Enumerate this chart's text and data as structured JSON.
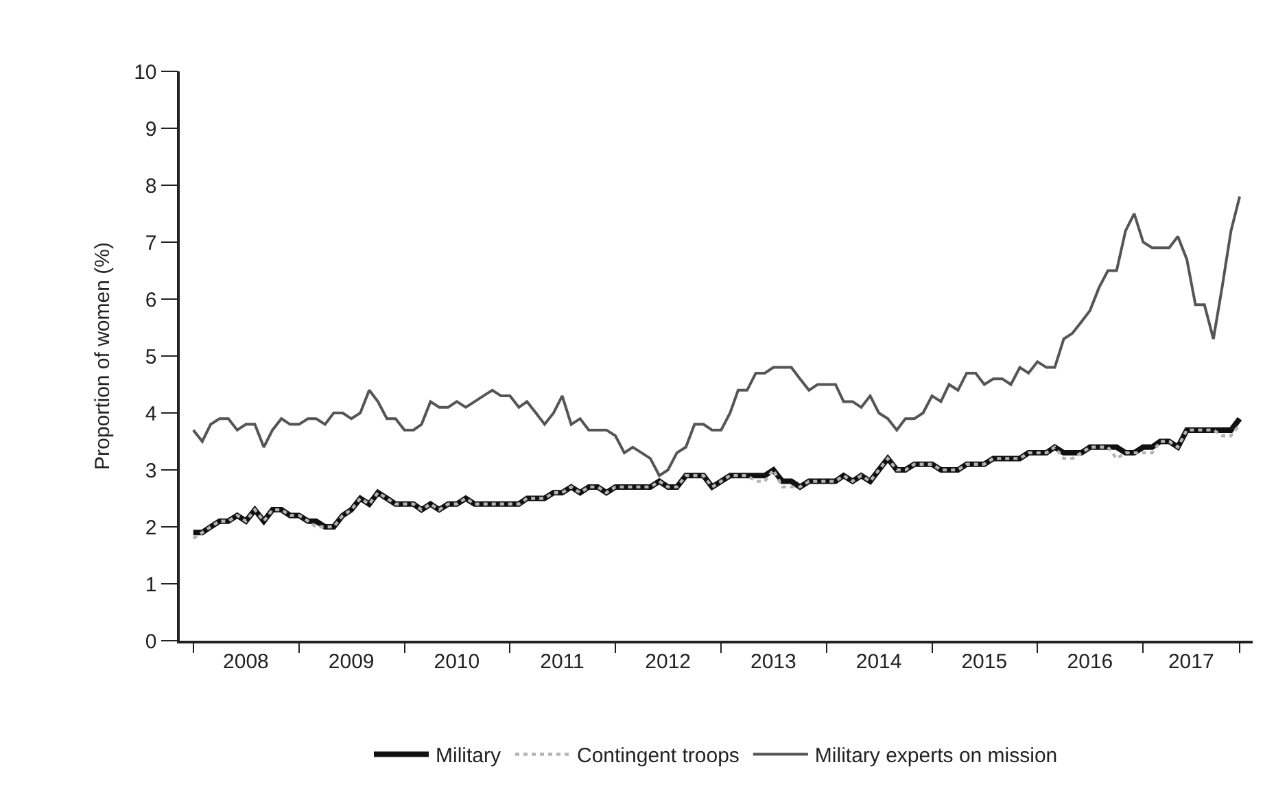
{
  "chart_data": {
    "type": "line",
    "ylabel": "Proportion of women (%)",
    "x": [
      "2008-01",
      "2008-02",
      "2008-03",
      "2008-04",
      "2008-05",
      "2008-06",
      "2008-07",
      "2008-08",
      "2008-09",
      "2008-10",
      "2008-11",
      "2008-12",
      "2009-01",
      "2009-02",
      "2009-03",
      "2009-04",
      "2009-05",
      "2009-06",
      "2009-07",
      "2009-08",
      "2009-09",
      "2009-10",
      "2009-11",
      "2009-12",
      "2010-01",
      "2010-02",
      "2010-03",
      "2010-04",
      "2010-05",
      "2010-06",
      "2010-07",
      "2010-08",
      "2010-09",
      "2010-10",
      "2010-11",
      "2010-12",
      "2011-01",
      "2011-02",
      "2011-03",
      "2011-04",
      "2011-05",
      "2011-06",
      "2011-07",
      "2011-08",
      "2011-09",
      "2011-10",
      "2011-11",
      "2011-12",
      "2012-01",
      "2012-02",
      "2012-03",
      "2012-04",
      "2012-05",
      "2012-06",
      "2012-07",
      "2012-08",
      "2012-09",
      "2012-10",
      "2012-11",
      "2012-12",
      "2013-01",
      "2013-02",
      "2013-03",
      "2013-04",
      "2013-05",
      "2013-06",
      "2013-07",
      "2013-08",
      "2013-09",
      "2013-10",
      "2013-11",
      "2013-12",
      "2014-01",
      "2014-02",
      "2014-03",
      "2014-04",
      "2014-05",
      "2014-06",
      "2014-07",
      "2014-08",
      "2014-09",
      "2014-10",
      "2014-11",
      "2014-12",
      "2015-01",
      "2015-02",
      "2015-03",
      "2015-04",
      "2015-05",
      "2015-06",
      "2015-07",
      "2015-08",
      "2015-09",
      "2015-10",
      "2015-11",
      "2015-12",
      "2016-01",
      "2016-02",
      "2016-03",
      "2016-04",
      "2016-05",
      "2016-06",
      "2016-07",
      "2016-08",
      "2016-09",
      "2016-10",
      "2016-11",
      "2016-12",
      "2017-01",
      "2017-02",
      "2017-03",
      "2017-04",
      "2017-05",
      "2017-06",
      "2017-07",
      "2017-08",
      "2017-09",
      "2017-10",
      "2017-11",
      "2017-12"
    ],
    "series": [
      {
        "name": "Military",
        "color": "#111111",
        "line_style": "solid",
        "values": [
          1.9,
          1.9,
          2.0,
          2.1,
          2.1,
          2.2,
          2.1,
          2.3,
          2.1,
          2.3,
          2.3,
          2.2,
          2.2,
          2.1,
          2.1,
          2.0,
          2.0,
          2.2,
          2.3,
          2.5,
          2.4,
          2.6,
          2.5,
          2.4,
          2.4,
          2.4,
          2.3,
          2.4,
          2.3,
          2.4,
          2.4,
          2.5,
          2.4,
          2.4,
          2.4,
          2.4,
          2.4,
          2.4,
          2.5,
          2.5,
          2.5,
          2.6,
          2.6,
          2.7,
          2.6,
          2.7,
          2.7,
          2.6,
          2.7,
          2.7,
          2.7,
          2.7,
          2.7,
          2.8,
          2.7,
          2.7,
          2.9,
          2.9,
          2.9,
          2.7,
          2.8,
          2.9,
          2.9,
          2.9,
          2.9,
          2.9,
          3.0,
          2.8,
          2.8,
          2.7,
          2.8,
          2.8,
          2.8,
          2.8,
          2.9,
          2.8,
          2.9,
          2.8,
          3.0,
          3.2,
          3.0,
          3.0,
          3.1,
          3.1,
          3.1,
          3.0,
          3.0,
          3.0,
          3.1,
          3.1,
          3.1,
          3.2,
          3.2,
          3.2,
          3.2,
          3.3,
          3.3,
          3.3,
          3.4,
          3.3,
          3.3,
          3.3,
          3.4,
          3.4,
          3.4,
          3.4,
          3.3,
          3.3,
          3.4,
          3.4,
          3.5,
          3.5,
          3.4,
          3.7,
          3.7,
          3.7,
          3.7,
          3.7,
          3.7,
          3.9
        ]
      },
      {
        "name": "Contingent troops",
        "color": "#b4b4b4",
        "line_style": "dotted",
        "values": [
          1.8,
          1.9,
          2.0,
          2.1,
          2.1,
          2.2,
          2.1,
          2.3,
          2.1,
          2.3,
          2.3,
          2.2,
          2.2,
          2.1,
          2.0,
          2.0,
          2.0,
          2.2,
          2.3,
          2.5,
          2.4,
          2.6,
          2.5,
          2.4,
          2.4,
          2.4,
          2.3,
          2.4,
          2.3,
          2.4,
          2.4,
          2.5,
          2.4,
          2.4,
          2.4,
          2.4,
          2.4,
          2.4,
          2.5,
          2.5,
          2.5,
          2.6,
          2.6,
          2.7,
          2.6,
          2.7,
          2.7,
          2.6,
          2.7,
          2.7,
          2.7,
          2.7,
          2.7,
          2.8,
          2.7,
          2.7,
          2.9,
          2.9,
          2.9,
          2.7,
          2.8,
          2.9,
          2.9,
          2.9,
          2.8,
          2.8,
          3.0,
          2.7,
          2.7,
          2.7,
          2.8,
          2.8,
          2.8,
          2.8,
          2.9,
          2.8,
          2.9,
          2.8,
          3.0,
          3.2,
          3.0,
          3.0,
          3.1,
          3.1,
          3.1,
          3.0,
          3.0,
          3.0,
          3.1,
          3.1,
          3.1,
          3.2,
          3.2,
          3.2,
          3.2,
          3.3,
          3.3,
          3.3,
          3.4,
          3.2,
          3.2,
          3.3,
          3.4,
          3.4,
          3.4,
          3.2,
          3.3,
          3.3,
          3.3,
          3.3,
          3.5,
          3.5,
          3.4,
          3.7,
          3.7,
          3.7,
          3.7,
          3.6,
          3.6,
          3.8
        ]
      },
      {
        "name": "Military experts on mission",
        "color": "#555555",
        "line_style": "solid",
        "values": [
          3.7,
          3.5,
          3.8,
          3.9,
          3.9,
          3.7,
          3.8,
          3.8,
          3.4,
          3.7,
          3.9,
          3.8,
          3.8,
          3.9,
          3.9,
          3.8,
          4.0,
          4.0,
          3.9,
          4.0,
          4.4,
          4.2,
          3.9,
          3.9,
          3.7,
          3.7,
          3.8,
          4.2,
          4.1,
          4.1,
          4.2,
          4.1,
          4.2,
          4.3,
          4.4,
          4.3,
          4.3,
          4.1,
          4.2,
          4.0,
          3.8,
          4.0,
          4.3,
          3.8,
          3.9,
          3.7,
          3.7,
          3.7,
          3.6,
          3.3,
          3.4,
          3.3,
          3.2,
          2.9,
          3.0,
          3.3,
          3.4,
          3.8,
          3.8,
          3.7,
          3.7,
          4.0,
          4.4,
          4.4,
          4.7,
          4.7,
          4.8,
          4.8,
          4.8,
          4.6,
          4.4,
          4.5,
          4.5,
          4.5,
          4.2,
          4.2,
          4.1,
          4.3,
          4.0,
          3.9,
          3.7,
          3.9,
          3.9,
          4.0,
          4.3,
          4.2,
          4.5,
          4.4,
          4.7,
          4.7,
          4.5,
          4.6,
          4.6,
          4.5,
          4.8,
          4.7,
          4.9,
          4.8,
          4.8,
          5.3,
          5.4,
          5.6,
          5.8,
          6.2,
          6.5,
          6.5,
          7.2,
          7.5,
          7.0,
          6.9,
          6.9,
          6.9,
          7.1,
          6.7,
          5.9,
          5.9,
          5.3,
          6.2,
          7.2,
          7.8
        ]
      }
    ],
    "xlim": [
      "2007-11-15",
      "2018-01-15"
    ],
    "xticks": [
      {
        "value": "2008-01-01",
        "label": null
      },
      {
        "value": "2008-07-01",
        "label": "2008"
      },
      {
        "value": "2009-01-01",
        "label": null
      },
      {
        "value": "2009-07-01",
        "label": "2009"
      },
      {
        "value": "2010-01-01",
        "label": null
      },
      {
        "value": "2010-07-01",
        "label": "2010"
      },
      {
        "value": "2011-01-01",
        "label": null
      },
      {
        "value": "2011-07-01",
        "label": "2011"
      },
      {
        "value": "2012-01-01",
        "label": null
      },
      {
        "value": "2012-07-01",
        "label": "2012"
      },
      {
        "value": "2013-01-01",
        "label": null
      },
      {
        "value": "2013-07-01",
        "label": "2013"
      },
      {
        "value": "2014-01-01",
        "label": null
      },
      {
        "value": "2014-07-01",
        "label": "2014"
      },
      {
        "value": "2015-01-01",
        "label": null
      },
      {
        "value": "2015-07-01",
        "label": "2015"
      },
      {
        "value": "2016-01-01",
        "label": null
      },
      {
        "value": "2016-07-01",
        "label": "2016"
      },
      {
        "value": "2017-01-01",
        "label": null
      },
      {
        "value": "2017-06-16",
        "label": "2017"
      },
      {
        "value": "2017-12-01",
        "label": null
      }
    ],
    "ylim": [
      0,
      10
    ],
    "yticks": [
      0,
      1,
      2,
      3,
      4,
      5,
      6,
      7,
      8,
      9,
      10
    ],
    "legend": "bottom",
    "marker": "none"
  }
}
